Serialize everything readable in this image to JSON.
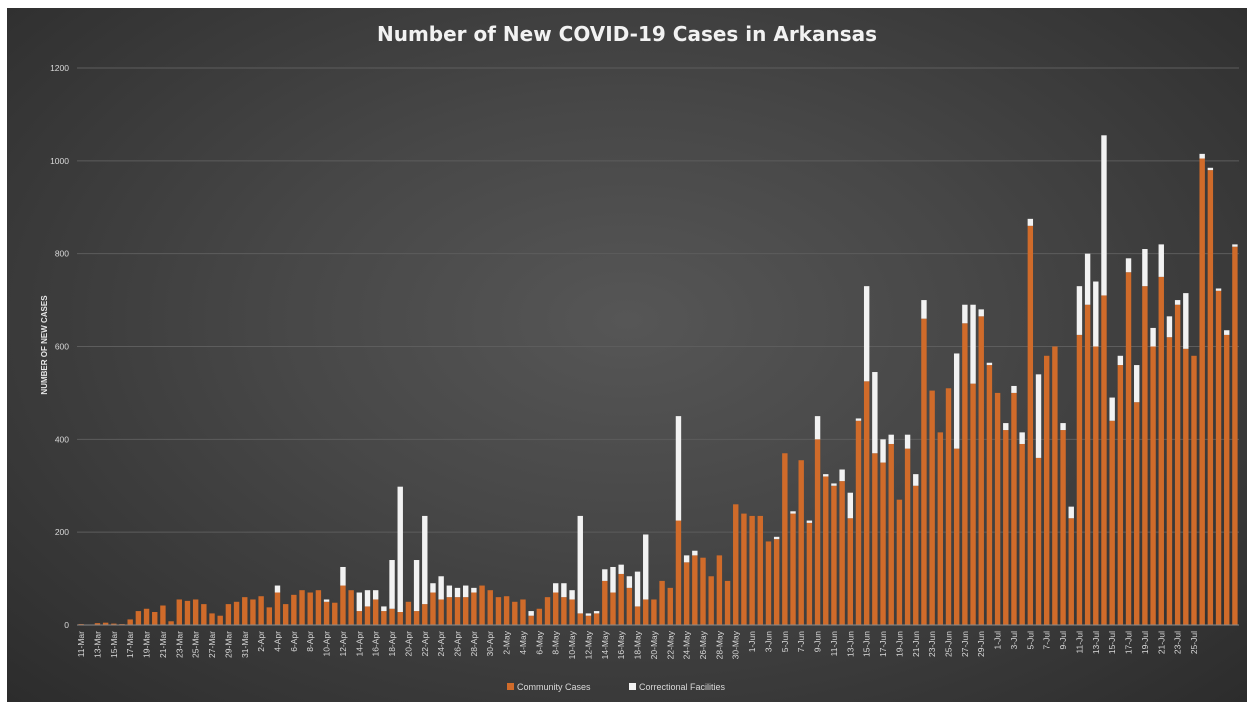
{
  "chart_data": {
    "type": "bar",
    "stacked": true,
    "title": "Number of New COVID-19 Cases in Arkansas",
    "ylabel": "NUMBER OF NEW CASES",
    "xlabel": "",
    "ylim": [
      0,
      1200
    ],
    "yticks": [
      0,
      200,
      400,
      600,
      800,
      1000,
      1200
    ],
    "grid": true,
    "legend_position": "bottom",
    "start_date": "2020-03-11",
    "x_tick_labels": [
      "11-Mar",
      "13-Mar",
      "15-Mar",
      "17-Mar",
      "19-Mar",
      "21-Mar",
      "23-Mar",
      "25-Mar",
      "27-Mar",
      "29-Mar",
      "31-Mar",
      "2-Apr",
      "4-Apr",
      "6-Apr",
      "8-Apr",
      "10-Apr",
      "12-Apr",
      "14-Apr",
      "16-Apr",
      "18-Apr",
      "20-Apr",
      "22-Apr",
      "24-Apr",
      "26-Apr",
      "28-Apr",
      "30-Apr",
      "2-May",
      "4-May",
      "6-May",
      "8-May",
      "10-May",
      "12-May",
      "14-May",
      "16-May",
      "18-May",
      "20-May",
      "22-May",
      "24-May",
      "26-May",
      "28-May",
      "30-May",
      "1-Jun",
      "3-Jun",
      "5-Jun",
      "7-Jun",
      "9-Jun",
      "11-Jun",
      "13-Jun",
      "15-Jun",
      "17-Jun",
      "19-Jun",
      "21-Jun",
      "23-Jun",
      "25-Jun",
      "27-Jun",
      "29-Jun",
      "1-Jul",
      "3-Jul",
      "5-Jul",
      "7-Jul",
      "9-Jul",
      "11-Jul",
      "13-Jul",
      "15-Jul",
      "17-Jul",
      "19-Jul",
      "21-Jul",
      "23-Jul",
      "25-Jul"
    ],
    "series": [
      {
        "name": "Community Cases",
        "color": "#d06b2a",
        "values": [
          2,
          1,
          4,
          5,
          3,
          2,
          12,
          30,
          35,
          28,
          42,
          8,
          55,
          52,
          55,
          45,
          25,
          20,
          45,
          50,
          60,
          55,
          62,
          38,
          70,
          45,
          65,
          75,
          70,
          75,
          50,
          48,
          85,
          75,
          30,
          40,
          55,
          30,
          35,
          28,
          50,
          30,
          45,
          70,
          55,
          60,
          60,
          60,
          70,
          85,
          75,
          60,
          62,
          50,
          55,
          20,
          35,
          60,
          70,
          60,
          55,
          25,
          20,
          25,
          95,
          70,
          110,
          80,
          40,
          55,
          55,
          95,
          80,
          225,
          135,
          150,
          145,
          105,
          150,
          95,
          260,
          240,
          235,
          235,
          180,
          185,
          370,
          240,
          355,
          220,
          400,
          320,
          300,
          310,
          230,
          440,
          525,
          370,
          350,
          390,
          270,
          380,
          300,
          660,
          505,
          415,
          510,
          380,
          650,
          520,
          665,
          560,
          500,
          420,
          500,
          390,
          860,
          360,
          580,
          600,
          420,
          230,
          625,
          690,
          600,
          710,
          440,
          560,
          760,
          480,
          730,
          600,
          750,
          620,
          690,
          595,
          580,
          1005,
          980,
          720,
          625,
          815
        ]
      },
      {
        "name": "Correctional Facilities",
        "color": "#f2f2f2",
        "values": [
          0,
          0,
          0,
          0,
          0,
          0,
          0,
          0,
          0,
          0,
          0,
          0,
          0,
          0,
          0,
          0,
          0,
          0,
          0,
          0,
          0,
          0,
          0,
          0,
          15,
          0,
          0,
          0,
          0,
          0,
          5,
          0,
          40,
          0,
          40,
          35,
          20,
          10,
          105,
          270,
          0,
          110,
          190,
          20,
          50,
          25,
          20,
          25,
          10,
          0,
          0,
          0,
          0,
          0,
          0,
          10,
          0,
          0,
          20,
          30,
          20,
          210,
          5,
          5,
          25,
          55,
          20,
          25,
          75,
          140,
          0,
          0,
          0,
          225,
          15,
          10,
          0,
          0,
          0,
          0,
          0,
          0,
          0,
          0,
          0,
          5,
          0,
          5,
          0,
          5,
          50,
          5,
          5,
          25,
          55,
          5,
          205,
          175,
          50,
          20,
          0,
          30,
          25,
          40,
          0,
          0,
          0,
          205,
          40,
          170,
          15,
          5,
          0,
          15,
          15,
          25,
          15,
          180,
          0,
          0,
          15,
          25,
          105,
          110,
          140,
          345,
          50,
          20,
          30,
          80,
          80,
          40,
          70,
          45,
          10,
          120,
          0,
          10,
          5,
          5,
          10,
          5
        ]
      }
    ]
  },
  "legend": [
    {
      "label": "Community Cases",
      "color": "#d06b2a"
    },
    {
      "label": "Correctional Facilities",
      "color": "#f2f2f2"
    }
  ]
}
